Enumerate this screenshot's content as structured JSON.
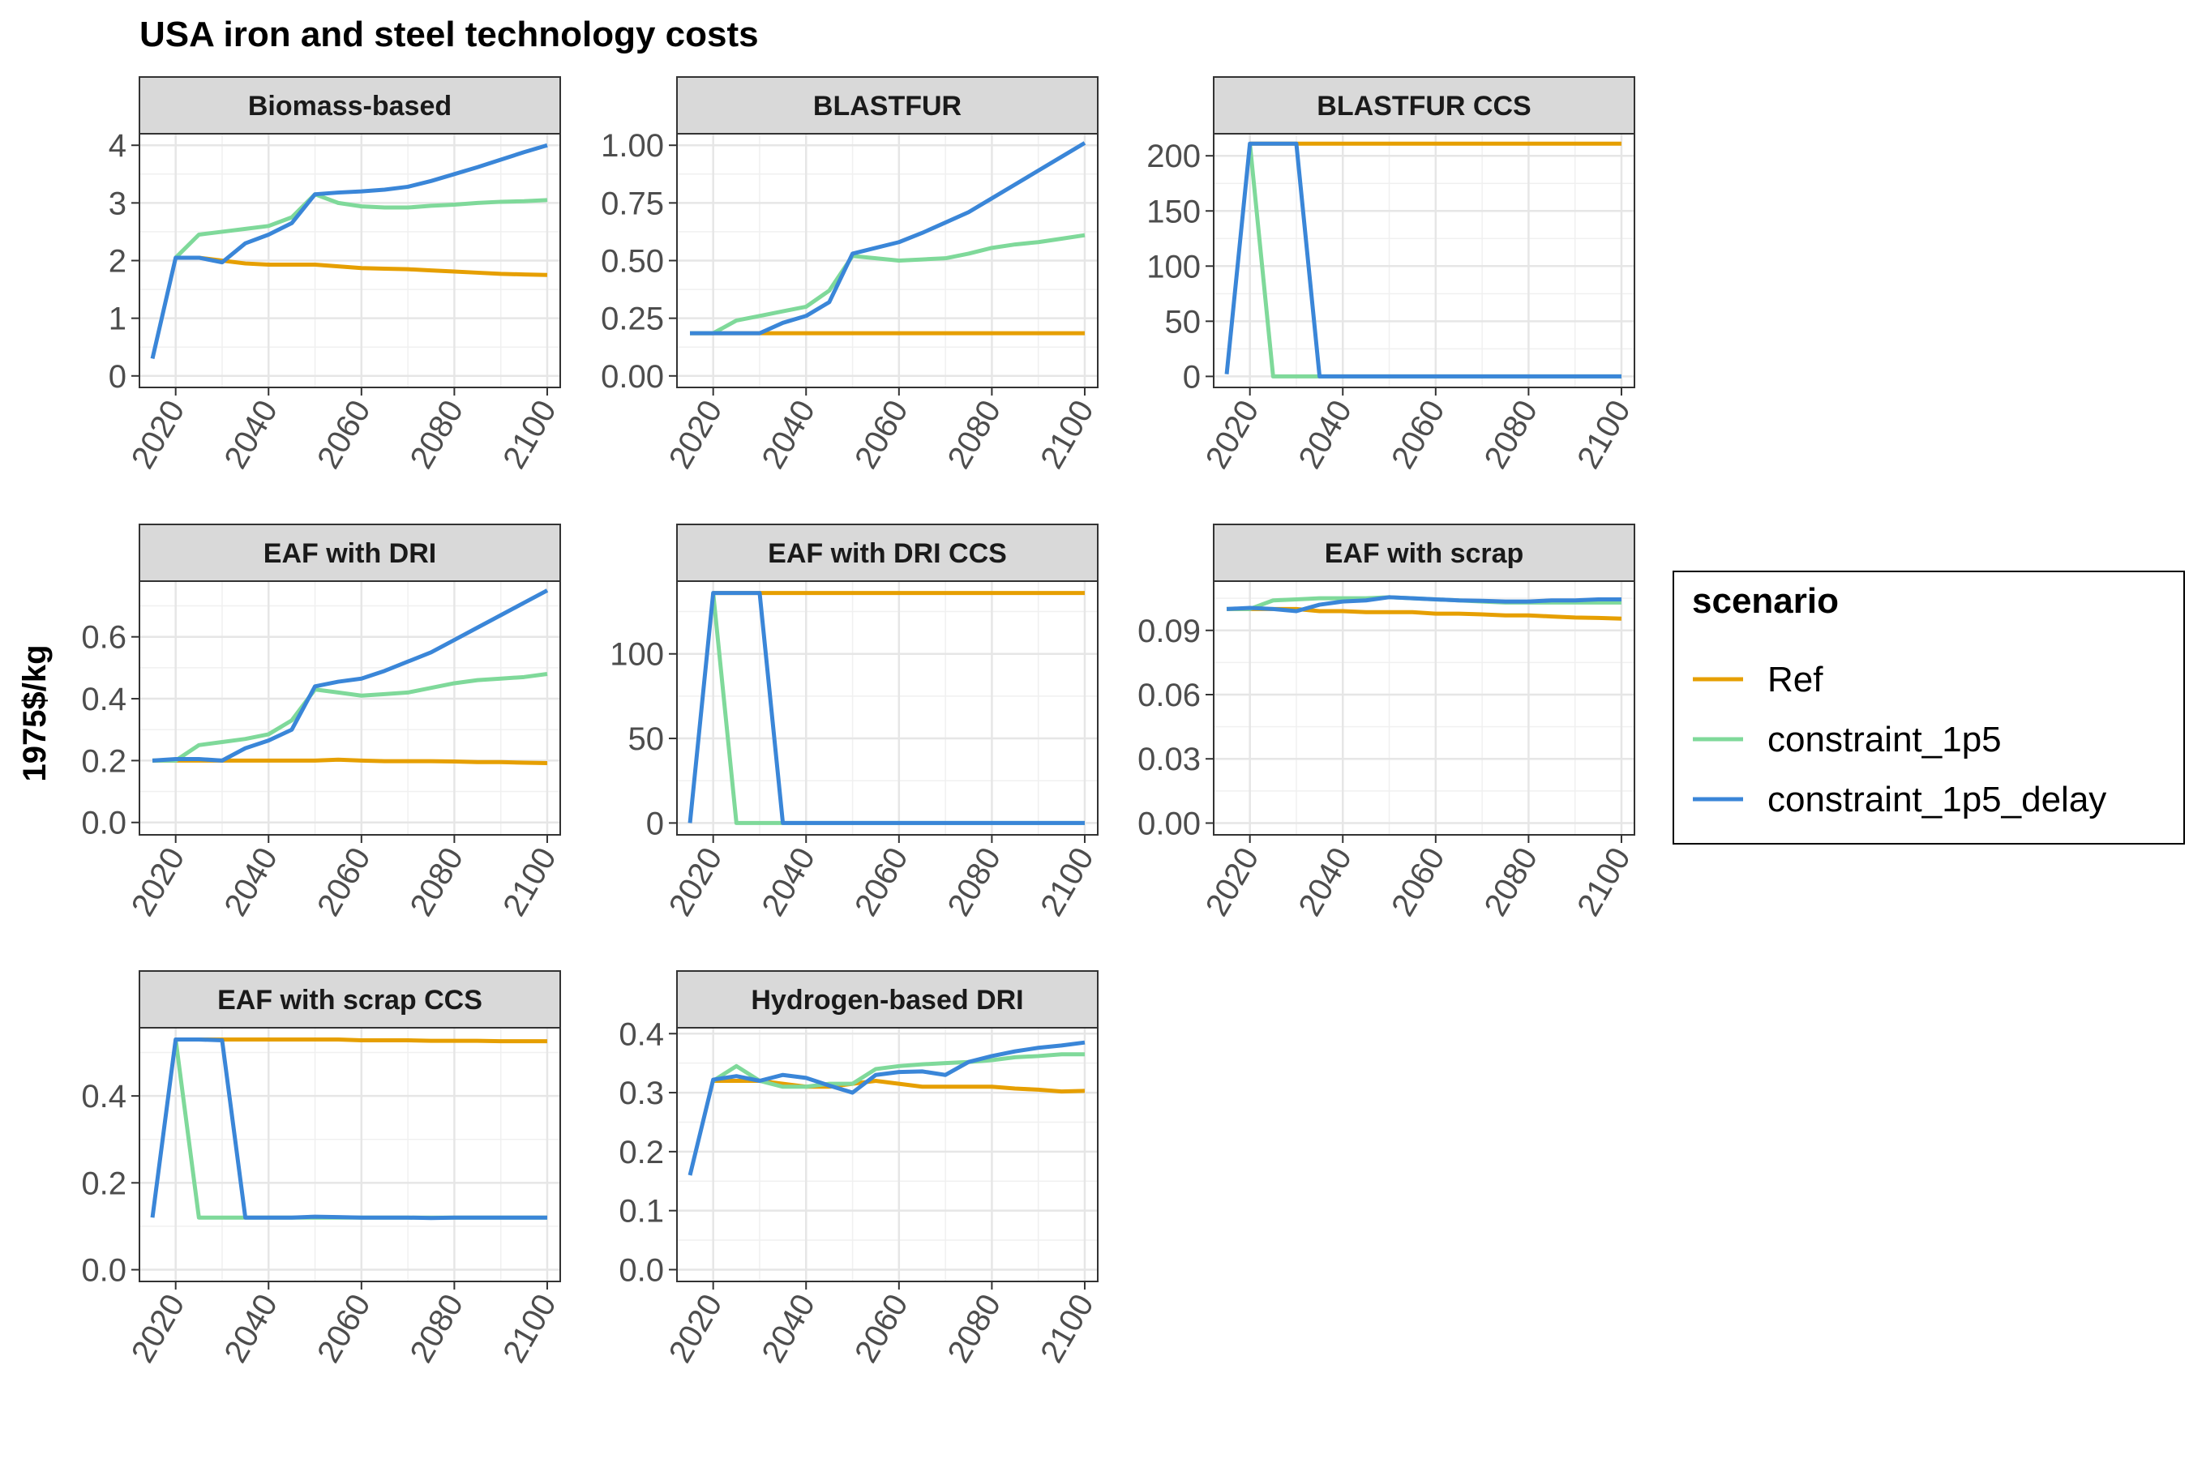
{
  "chart_data": {
    "type": "line",
    "title": "USA iron and steel technology costs",
    "ylabel": "1975$/kg",
    "xlabel": "",
    "x_ticks": [
      2020,
      2040,
      2060,
      2080,
      2100
    ],
    "x": [
      2015,
      2020,
      2025,
      2030,
      2035,
      2040,
      2045,
      2050,
      2055,
      2060,
      2065,
      2070,
      2075,
      2080,
      2085,
      2090,
      2095,
      2100
    ],
    "legend": {
      "title": "scenario",
      "position": "right",
      "entries": [
        "Ref",
        "constraint_1p5",
        "constraint_1p5_delay"
      ]
    },
    "series_colors": {
      "Ref": "#E69F00",
      "constraint_1p5": "#7FD99A",
      "constraint_1p5_delay": "#3A86D8"
    },
    "grid": true,
    "panels": [
      {
        "name": "Biomass-based",
        "ylim": [
          -0.2,
          4.2
        ],
        "y_ticks": [
          0,
          1,
          2,
          3,
          4
        ],
        "tick_labels": [
          "0",
          "1",
          "2",
          "3",
          "4"
        ],
        "series": [
          {
            "name": "Ref",
            "values": [
              null,
              2.05,
              2.05,
              2.0,
              1.95,
              1.93,
              1.93,
              1.93,
              1.9,
              1.87,
              1.86,
              1.85,
              1.83,
              1.81,
              1.79,
              1.77,
              1.76,
              1.75
            ]
          },
          {
            "name": "constraint_1p5",
            "values": [
              null,
              2.05,
              2.45,
              2.5,
              2.55,
              2.6,
              2.75,
              3.15,
              3.0,
              2.94,
              2.92,
              2.92,
              2.95,
              2.97,
              3.0,
              3.02,
              3.03,
              3.05
            ]
          },
          {
            "name": "constraint_1p5_delay",
            "values": [
              0.3,
              2.05,
              2.05,
              1.97,
              2.3,
              2.45,
              2.65,
              3.15,
              3.18,
              3.2,
              3.23,
              3.28,
              3.38,
              3.5,
              3.62,
              3.75,
              3.88,
              4.0
            ]
          }
        ]
      },
      {
        "name": "BLASTFUR",
        "ylim": [
          -0.05,
          1.05
        ],
        "y_ticks": [
          0,
          0.25,
          0.5,
          0.75,
          1
        ],
        "tick_labels": [
          "0.00",
          "0.25",
          "0.50",
          "0.75",
          "1.00"
        ],
        "series": [
          {
            "name": "Ref",
            "values": [
              0.185,
              0.185,
              0.185,
              0.185,
              0.185,
              0.185,
              0.185,
              0.185,
              0.185,
              0.185,
              0.185,
              0.185,
              0.185,
              0.185,
              0.185,
              0.185,
              0.185,
              0.185
            ]
          },
          {
            "name": "constraint_1p5",
            "values": [
              0.185,
              0.185,
              0.24,
              0.26,
              0.28,
              0.3,
              0.37,
              0.52,
              0.51,
              0.5,
              0.505,
              0.51,
              0.53,
              0.555,
              0.57,
              0.58,
              0.595,
              0.61
            ]
          },
          {
            "name": "constraint_1p5_delay",
            "values": [
              0.185,
              0.185,
              0.185,
              0.185,
              0.23,
              0.26,
              0.32,
              0.53,
              0.555,
              0.58,
              0.62,
              0.665,
              0.71,
              0.77,
              0.83,
              0.89,
              0.95,
              1.01
            ]
          }
        ]
      },
      {
        "name": "BLASTFUR CCS",
        "ylim": [
          -10,
          220
        ],
        "y_ticks": [
          0,
          50,
          100,
          150,
          200
        ],
        "tick_labels": [
          "0",
          "50",
          "100",
          "150",
          "200"
        ],
        "series": [
          {
            "name": "Ref",
            "values": [
              null,
              211,
              211,
              211,
              211,
              211,
              211,
              211,
              211,
              211,
              211,
              211,
              211,
              211,
              211,
              211,
              211,
              211
            ]
          },
          {
            "name": "constraint_1p5",
            "values": [
              null,
              211,
              0,
              0,
              0,
              0,
              0,
              0,
              0,
              0,
              0,
              0,
              0,
              0,
              0,
              0,
              0,
              0
            ]
          },
          {
            "name": "constraint_1p5_delay",
            "values": [
              2,
              211,
              211,
              211,
              0,
              0,
              0,
              0,
              0,
              0,
              0,
              0,
              0,
              0,
              0,
              0,
              0,
              0
            ]
          }
        ]
      },
      {
        "name": "EAF with DRI",
        "ylim": [
          -0.04,
          0.78
        ],
        "y_ticks": [
          0,
          0.2,
          0.4,
          0.6
        ],
        "tick_labels": [
          "0.0",
          "0.2",
          "0.4",
          "0.6"
        ],
        "series": [
          {
            "name": "Ref",
            "values": [
              0.2,
              0.2,
              0.2,
              0.2,
              0.2,
              0.2,
              0.2,
              0.2,
              0.203,
              0.2,
              0.198,
              0.198,
              0.198,
              0.197,
              0.195,
              0.195,
              0.193,
              0.192
            ]
          },
          {
            "name": "constraint_1p5",
            "values": [
              0.2,
              0.2,
              0.25,
              0.26,
              0.27,
              0.285,
              0.33,
              0.43,
              0.42,
              0.41,
              0.415,
              0.42,
              0.435,
              0.45,
              0.46,
              0.465,
              0.47,
              0.48
            ]
          },
          {
            "name": "constraint_1p5_delay",
            "values": [
              0.2,
              0.205,
              0.205,
              0.2,
              0.24,
              0.265,
              0.3,
              0.44,
              0.455,
              0.465,
              0.49,
              0.52,
              0.55,
              0.59,
              0.63,
              0.67,
              0.71,
              0.75
            ]
          }
        ]
      },
      {
        "name": "EAF with DRI CCS",
        "ylim": [
          -7,
          143
        ],
        "y_ticks": [
          0,
          50,
          100
        ],
        "tick_labels": [
          "0",
          "50",
          "100"
        ],
        "series": [
          {
            "name": "Ref",
            "values": [
              null,
              136,
              136,
              136,
              136,
              136,
              136,
              136,
              136,
              136,
              136,
              136,
              136,
              136,
              136,
              136,
              136,
              136
            ]
          },
          {
            "name": "constraint_1p5",
            "values": [
              null,
              136,
              0,
              0,
              0,
              0,
              0,
              0,
              0,
              0,
              0,
              0,
              0,
              0,
              0,
              0,
              0,
              0
            ]
          },
          {
            "name": "constraint_1p5_delay",
            "values": [
              0,
              136,
              136,
              136,
              0,
              0,
              0,
              0,
              0,
              0,
              0,
              0,
              0,
              0,
              0,
              0,
              0,
              0
            ]
          }
        ]
      },
      {
        "name": "EAF with scrap",
        "ylim": [
          -0.0055,
          0.113
        ],
        "y_ticks": [
          0,
          0.03,
          0.06,
          0.09
        ],
        "tick_labels": [
          "0.00",
          "0.03",
          "0.06",
          "0.09"
        ],
        "series": [
          {
            "name": "Ref",
            "values": [
              0.1,
              0.1,
              0.1,
              0.1,
              0.099,
              0.099,
              0.0985,
              0.0985,
              0.0985,
              0.0978,
              0.0978,
              0.0975,
              0.097,
              0.097,
              0.0965,
              0.096,
              0.0958,
              0.0955
            ]
          },
          {
            "name": "constraint_1p5",
            "values": [
              0.1,
              0.1,
              0.104,
              0.1045,
              0.105,
              0.105,
              0.105,
              0.1055,
              0.105,
              0.1045,
              0.104,
              0.1035,
              0.103,
              0.103,
              0.103,
              0.103,
              0.103,
              0.103
            ]
          },
          {
            "name": "constraint_1p5_delay",
            "values": [
              0.1,
              0.1005,
              0.1,
              0.099,
              0.102,
              0.1035,
              0.104,
              0.1055,
              0.105,
              0.1045,
              0.104,
              0.1038,
              0.1035,
              0.1035,
              0.104,
              0.104,
              0.1045,
              0.1045
            ]
          }
        ]
      },
      {
        "name": "EAF with scrap CCS",
        "ylim": [
          -0.027,
          0.557
        ],
        "y_ticks": [
          0,
          0.2,
          0.4
        ],
        "tick_labels": [
          "0.0",
          "0.2",
          "0.4"
        ],
        "series": [
          {
            "name": "Ref",
            "values": [
              null,
              0.53,
              0.53,
              0.53,
              0.53,
              0.53,
              0.53,
              0.53,
              0.53,
              0.528,
              0.528,
              0.528,
              0.527,
              0.527,
              0.527,
              0.526,
              0.526,
              0.526
            ]
          },
          {
            "name": "constraint_1p5",
            "values": [
              null,
              0.53,
              0.12,
              0.12,
              0.12,
              0.12,
              0.12,
              0.12,
              0.12,
              0.12,
              0.12,
              0.12,
              0.12,
              0.12,
              0.12,
              0.12,
              0.12,
              0.12
            ]
          },
          {
            "name": "constraint_1p5_delay",
            "values": [
              0.12,
              0.53,
              0.53,
              0.528,
              0.12,
              0.12,
              0.12,
              0.122,
              0.121,
              0.12,
              0.12,
              0.12,
              0.119,
              0.12,
              0.12,
              0.12,
              0.12,
              0.12
            ]
          }
        ]
      },
      {
        "name": "Hydrogen-based DRI",
        "ylim": [
          -0.02,
          0.41
        ],
        "y_ticks": [
          0,
          0.1,
          0.2,
          0.3,
          0.4
        ],
        "tick_labels": [
          "0.0",
          "0.1",
          "0.2",
          "0.3",
          "0.4"
        ],
        "series": [
          {
            "name": "Ref",
            "values": [
              null,
              0.32,
              0.32,
              0.32,
              0.315,
              0.31,
              0.31,
              0.315,
              0.32,
              0.315,
              0.31,
              0.31,
              0.31,
              0.31,
              0.307,
              0.305,
              0.302,
              0.303
            ]
          },
          {
            "name": "constraint_1p5",
            "values": [
              null,
              0.32,
              0.345,
              0.32,
              0.31,
              0.31,
              0.315,
              0.315,
              0.34,
              0.345,
              0.348,
              0.35,
              0.352,
              0.355,
              0.36,
              0.362,
              0.365,
              0.365
            ]
          },
          {
            "name": "constraint_1p5_delay",
            "values": [
              0.16,
              0.322,
              0.328,
              0.32,
              0.33,
              0.325,
              0.312,
              0.3,
              0.33,
              0.335,
              0.336,
              0.33,
              0.352,
              0.362,
              0.37,
              0.376,
              0.38,
              0.385
            ]
          }
        ]
      }
    ]
  }
}
